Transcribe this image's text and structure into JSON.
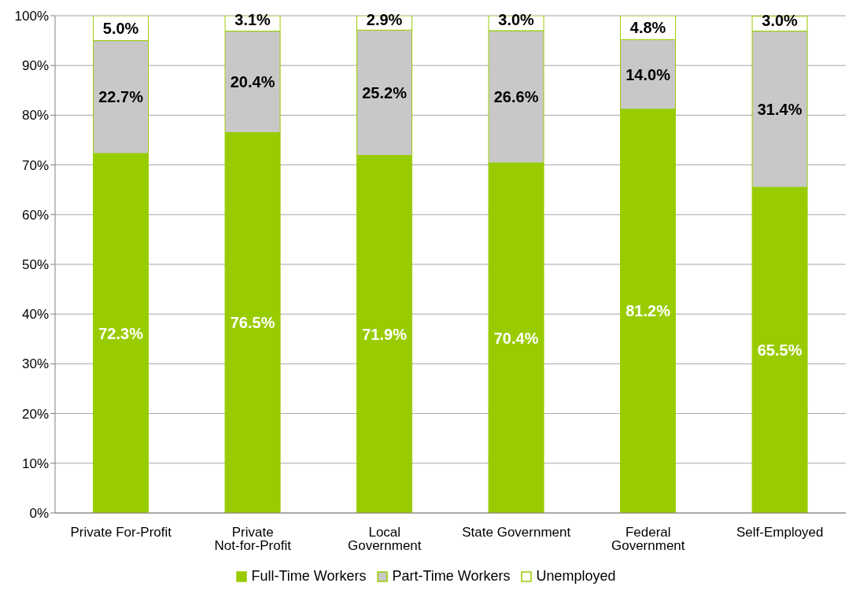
{
  "chart_data": {
    "type": "bar",
    "stacked": true,
    "categories": [
      "Private For-Profit",
      "Private Not-for-Profit",
      "Local Government",
      "State Government",
      "Federal Government",
      "Self-Employed"
    ],
    "series": [
      {
        "name": "Full-Time Workers",
        "color": "#99cc00",
        "values": [
          72.3,
          76.5,
          71.9,
          70.4,
          81.2,
          65.5
        ],
        "value_labels": [
          "72.3%",
          "76.5%",
          "71.9%",
          "70.4%",
          "81.2%",
          "65.5%"
        ]
      },
      {
        "name": "Part-Time Workers",
        "color": "#c8c8c8",
        "values": [
          22.7,
          20.4,
          25.2,
          26.6,
          14.0,
          31.4
        ],
        "value_labels": [
          "22.7%",
          "20.4%",
          "25.2%",
          "26.6%",
          "14.0%",
          "31.4%"
        ]
      },
      {
        "name": "Unemployed",
        "color": "#ffffff",
        "values": [
          5.0,
          3.1,
          2.9,
          3.0,
          4.8,
          3.0
        ],
        "value_labels": [
          "5.0%",
          "3.1%",
          "2.9%",
          "3.0%",
          "4.8%",
          "3.0%"
        ]
      }
    ],
    "ylim": [
      0,
      100
    ],
    "yticks": [
      {
        "value": 0,
        "label": "0%"
      },
      {
        "value": 10,
        "label": "10%"
      },
      {
        "value": 20,
        "label": "20%"
      },
      {
        "value": 30,
        "label": "30%"
      },
      {
        "value": 40,
        "label": "40%"
      },
      {
        "value": 50,
        "label": "50%"
      },
      {
        "value": 60,
        "label": "60%"
      },
      {
        "value": 70,
        "label": "70%"
      },
      {
        "value": 80,
        "label": "80%"
      },
      {
        "value": 90,
        "label": "90%"
      },
      {
        "value": 100,
        "label": "100%"
      }
    ],
    "grid": "y",
    "legend": "bottom"
  }
}
